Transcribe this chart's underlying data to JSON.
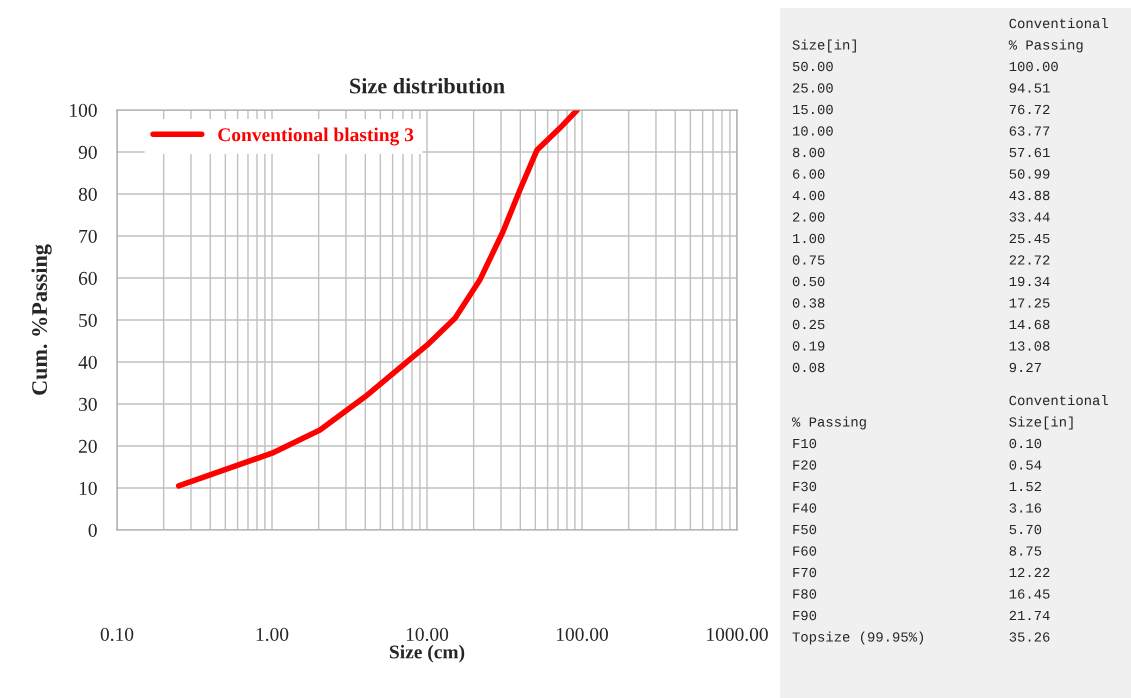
{
  "chart_data": [
    {
      "type": "line",
      "title": "Size distribution",
      "xlabel": "Size (cm)",
      "ylabel": "Cum. %Passing",
      "log": "x",
      "xlim": [
        0.1,
        1000
      ],
      "ylim": [
        0,
        100
      ],
      "xticks": [
        {
          "value": 0.1,
          "label": "0.10"
        },
        {
          "value": 1,
          "label": "1.00"
        },
        {
          "value": 10,
          "label": "10.00"
        },
        {
          "value": 100,
          "label": "100.00"
        },
        {
          "value": 1000,
          "label": "1000.00"
        }
      ],
      "yticks": [
        0,
        10,
        20,
        30,
        40,
        50,
        60,
        70,
        80,
        90,
        100
      ],
      "grid": true,
      "legend": "top left",
      "marker": "none",
      "line_style": "solid",
      "series": [
        {
          "name": "Conventional blasting 3",
          "color": "#ff0000",
          "x": [
            0.25,
            1.0,
            2.04,
            3.98,
            10,
            15.2,
            21.9,
            30.9,
            39.8,
            51.3,
            72,
            93
          ],
          "values": [
            10.5,
            18.3,
            23.8,
            31.7,
            44,
            50.5,
            59.5,
            71,
            81,
            90.5,
            95.7,
            100
          ]
        }
      ]
    },
    {
      "type": "other",
      "annotations": [
        "                          Conventional",
        "Size[in]                  % Passing",
        "50.00                     100.00",
        "25.00                     94.51",
        "15.00                     76.72",
        "10.00                     63.77",
        "8.00                      57.61",
        "6.00                      50.99",
        "4.00                      43.88",
        "2.00                      33.44",
        "1.00                      25.45",
        "0.75                      22.72",
        "0.50                      19.34",
        "0.38                      17.25",
        "0.25                      14.68",
        "0.19                      13.08",
        "0.08                      9.27"
      ]
    },
    {
      "type": "other",
      "annotations": [
        "                          Conventional",
        "% Passing                 Size[in]",
        "F10                       0.10",
        "F20                       0.54",
        "F30                       1.52",
        "F40                       3.16",
        "F50                       5.70",
        "F60                       8.75",
        "F70                       12.22",
        "F80                       16.45",
        "F90                       21.74",
        "Topsize (99.95%)          35.26"
      ]
    }
  ]
}
